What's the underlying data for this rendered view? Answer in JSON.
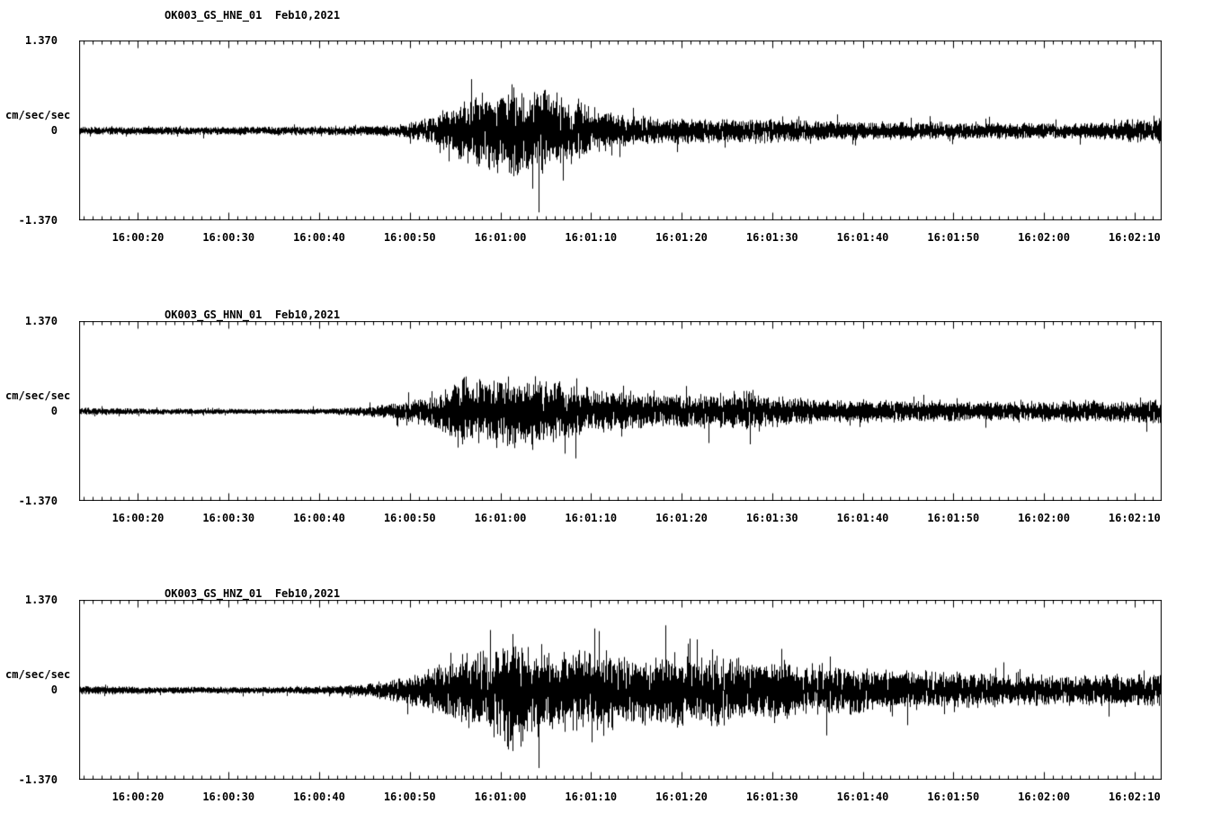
{
  "page": {
    "background": "#ffffff",
    "trace_color": "#000000"
  },
  "chart_data": [
    {
      "type": "line",
      "title": "OK003_GS_HNE_01  Feb10,2021",
      "ylabel": "cm/sec/sec",
      "ylim": [
        -1.37,
        1.37
      ],
      "y_tick_labels": [
        "1.370",
        "0",
        "-1.370"
      ],
      "x_tick_labels": [
        "16:00:20",
        "16:00:30",
        "16:00:40",
        "16:00:50",
        "16:01:00",
        "16:01:10",
        "16:01:20",
        "16:01:30",
        "16:01:40",
        "16:01:50",
        "16:02:00",
        "16:02:10"
      ],
      "x_tick_seconds": [
        20,
        30,
        40,
        50,
        60,
        70,
        80,
        90,
        100,
        110,
        120,
        130
      ],
      "x_range_seconds": [
        13.5,
        133
      ],
      "grid": false,
      "legend": false,
      "envelope_units": "cm/sec/sec",
      "envelope_description": "approximate peak-amplitude envelope of seismogram: [seconds after 16:00:00, amplitude]",
      "envelope": [
        [
          13.5,
          0.055
        ],
        [
          20,
          0.05
        ],
        [
          30,
          0.05
        ],
        [
          40,
          0.055
        ],
        [
          46,
          0.06
        ],
        [
          49,
          0.09
        ],
        [
          51,
          0.13
        ],
        [
          53,
          0.22
        ],
        [
          54,
          0.3
        ],
        [
          56,
          0.42
        ],
        [
          58,
          0.5
        ],
        [
          60,
          0.55
        ],
        [
          61,
          0.62
        ],
        [
          63,
          0.55
        ],
        [
          65,
          0.58
        ],
        [
          66,
          0.5
        ],
        [
          68,
          0.38
        ],
        [
          70,
          0.3
        ],
        [
          73,
          0.22
        ],
        [
          76,
          0.19
        ],
        [
          80,
          0.17
        ],
        [
          84,
          0.15
        ],
        [
          88,
          0.17
        ],
        [
          92,
          0.14
        ],
        [
          96,
          0.13
        ],
        [
          100,
          0.12
        ],
        [
          105,
          0.12
        ],
        [
          110,
          0.11
        ],
        [
          115,
          0.11
        ],
        [
          120,
          0.1
        ],
        [
          125,
          0.1
        ],
        [
          129,
          0.15
        ],
        [
          133,
          0.16
        ]
      ],
      "seed": 101
    },
    {
      "type": "line",
      "title": "OK003_GS_HNN_01  Feb10,2021",
      "ylabel": "cm/sec/sec",
      "ylim": [
        -1.37,
        1.37
      ],
      "y_tick_labels": [
        "1.370",
        "0",
        "-1.370"
      ],
      "x_tick_labels": [
        "16:00:20",
        "16:00:30",
        "16:00:40",
        "16:00:50",
        "16:01:00",
        "16:01:10",
        "16:01:20",
        "16:01:30",
        "16:01:40",
        "16:01:50",
        "16:02:00",
        "16:02:10"
      ],
      "x_tick_seconds": [
        20,
        30,
        40,
        50,
        60,
        70,
        80,
        90,
        100,
        110,
        120,
        130
      ],
      "x_range_seconds": [
        13.5,
        133
      ],
      "grid": false,
      "legend": false,
      "envelope_units": "cm/sec/sec",
      "envelope_description": "approximate peak-amplitude envelope of seismogram: [seconds after 16:00:00, amplitude]",
      "envelope": [
        [
          13.5,
          0.045
        ],
        [
          20,
          0.04
        ],
        [
          25,
          0.035
        ],
        [
          30,
          0.03
        ],
        [
          35,
          0.03
        ],
        [
          40,
          0.035
        ],
        [
          44,
          0.05
        ],
        [
          46,
          0.07
        ],
        [
          48,
          0.1
        ],
        [
          50,
          0.14
        ],
        [
          52,
          0.2
        ],
        [
          54,
          0.32
        ],
        [
          55,
          0.45
        ],
        [
          56,
          0.5
        ],
        [
          57,
          0.42
        ],
        [
          58,
          0.48
        ],
        [
          60,
          0.45
        ],
        [
          61,
          0.5
        ],
        [
          62,
          0.42
        ],
        [
          64,
          0.48
        ],
        [
          65,
          0.4
        ],
        [
          66,
          0.44
        ],
        [
          68,
          0.35
        ],
        [
          70,
          0.3
        ],
        [
          72,
          0.28
        ],
        [
          75,
          0.25
        ],
        [
          78,
          0.24
        ],
        [
          80,
          0.22
        ],
        [
          83,
          0.24
        ],
        [
          85,
          0.2
        ],
        [
          87,
          0.3
        ],
        [
          88,
          0.26
        ],
        [
          90,
          0.2
        ],
        [
          93,
          0.18
        ],
        [
          96,
          0.16
        ],
        [
          100,
          0.15
        ],
        [
          105,
          0.14
        ],
        [
          110,
          0.13
        ],
        [
          115,
          0.13
        ],
        [
          120,
          0.13
        ],
        [
          124,
          0.16
        ],
        [
          127,
          0.14
        ],
        [
          130,
          0.15
        ],
        [
          133,
          0.16
        ]
      ],
      "seed": 202
    },
    {
      "type": "line",
      "title": "OK003_GS_HNZ_01  Feb10,2021",
      "ylabel": "cm/sec/sec",
      "ylim": [
        -1.37,
        1.37
      ],
      "y_tick_labels": [
        "1.370",
        "0",
        "-1.370"
      ],
      "x_tick_labels": [
        "16:00:20",
        "16:00:30",
        "16:00:40",
        "16:00:50",
        "16:01:00",
        "16:01:10",
        "16:01:20",
        "16:01:30",
        "16:01:40",
        "16:01:50",
        "16:02:00",
        "16:02:10"
      ],
      "x_tick_seconds": [
        20,
        30,
        40,
        50,
        60,
        70,
        80,
        90,
        100,
        110,
        120,
        130
      ],
      "x_range_seconds": [
        13.5,
        133
      ],
      "grid": false,
      "legend": false,
      "envelope_units": "cm/sec/sec",
      "envelope_description": "approximate peak-amplitude envelope of seismogram: [seconds after 16:00:00, amplitude]",
      "envelope": [
        [
          13.5,
          0.05
        ],
        [
          20,
          0.045
        ],
        [
          30,
          0.04
        ],
        [
          35,
          0.04
        ],
        [
          40,
          0.05
        ],
        [
          43,
          0.06
        ],
        [
          45,
          0.08
        ],
        [
          47,
          0.12
        ],
        [
          49,
          0.18
        ],
        [
          51,
          0.24
        ],
        [
          53,
          0.35
        ],
        [
          55,
          0.45
        ],
        [
          56,
          0.5
        ],
        [
          57,
          0.55
        ],
        [
          58,
          0.5
        ],
        [
          59,
          0.6
        ],
        [
          60,
          0.65
        ],
        [
          61,
          0.9
        ],
        [
          62,
          0.7
        ],
        [
          63,
          0.6
        ],
        [
          64,
          0.65
        ],
        [
          66,
          0.55
        ],
        [
          68,
          0.6
        ],
        [
          70,
          0.5
        ],
        [
          72,
          0.55
        ],
        [
          74,
          0.45
        ],
        [
          76,
          0.5
        ],
        [
          78,
          0.55
        ],
        [
          80,
          0.5
        ],
        [
          82,
          0.45
        ],
        [
          84,
          0.5
        ],
        [
          86,
          0.45
        ],
        [
          88,
          0.4
        ],
        [
          90,
          0.42
        ],
        [
          92,
          0.38
        ],
        [
          95,
          0.35
        ],
        [
          98,
          0.32
        ],
        [
          100,
          0.3
        ],
        [
          103,
          0.28
        ],
        [
          106,
          0.26
        ],
        [
          110,
          0.24
        ],
        [
          114,
          0.22
        ],
        [
          118,
          0.2
        ],
        [
          122,
          0.2
        ],
        [
          126,
          0.21
        ],
        [
          130,
          0.22
        ],
        [
          133,
          0.23
        ]
      ],
      "seed": 303
    }
  ]
}
